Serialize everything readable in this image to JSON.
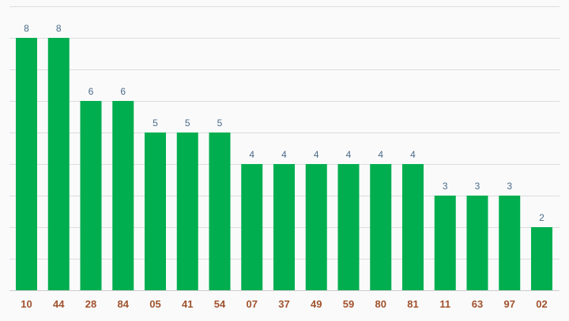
{
  "colors": {
    "bar": "#00ae4f",
    "value_label": "#4a6b8a",
    "tick_label": "#a0522d",
    "grid": "#dddddd",
    "background": "#fafafa"
  },
  "chart_data": {
    "type": "bar",
    "title": "",
    "xlabel": "",
    "ylabel": "",
    "categories": [
      "10",
      "44",
      "28",
      "84",
      "05",
      "41",
      "54",
      "07",
      "37",
      "49",
      "59",
      "80",
      "81",
      "11",
      "63",
      "97",
      "02"
    ],
    "values": [
      8,
      8,
      6,
      6,
      5,
      5,
      5,
      4,
      4,
      4,
      4,
      4,
      4,
      3,
      3,
      3,
      2
    ],
    "ylim": [
      0,
      9
    ],
    "grid": true,
    "legend": "none",
    "data_labels": true
  }
}
